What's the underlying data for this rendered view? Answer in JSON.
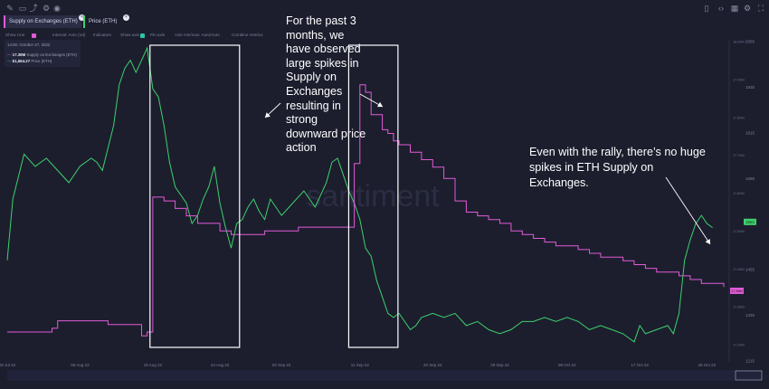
{
  "toolbar_top": {
    "icons": [
      "pencil-icon",
      "rectangle-icon",
      "share-icon",
      "settings-icon",
      "camera-icon"
    ],
    "right_icons": [
      "sidebar-icon",
      "code-icon",
      "layout-icon",
      "gear-icon",
      "fullscreen-icon"
    ]
  },
  "tabs": [
    {
      "label": "Supply on Exchanges (ETH)",
      "color": "#e15bd6"
    },
    {
      "label": "Price (ETH)",
      "color": "#3dd16b"
    }
  ],
  "chart_options": {
    "items": [
      "Show Line",
      "Interval: Auto (1d)",
      "Indicators",
      "Show axis",
      "Pin axis",
      "Axis min/max: Auto/Auto",
      "Combine metrics"
    ]
  },
  "tooltip": {
    "date": "14:00, October 27, 2022",
    "items": [
      {
        "value": "17.38M",
        "label": "Supply on Exchanges (ETH)",
        "color": "#e15bd6"
      },
      {
        "value": "$1,564.27",
        "label": "Price (ETH)",
        "color": "#3dd16b"
      }
    ]
  },
  "annotation_left": "For the past 3 months, we have observed large spikes in Supply on Exchanges resulting in strong downward price action",
  "annotation_right": "Even with the rally, there’s no huge spikes in ETH Supply on Exchanges.",
  "watermark": "santiment",
  "chart_data": {
    "type": "line",
    "x_ticks": [
      "28 Jul 22",
      "06 Aug 22",
      "15 Aug 22",
      "24 Aug 22",
      "02 Sep 22",
      "11 Sep 22",
      "20 Sep 22",
      "29 Sep 22",
      "08 Oct 22",
      "17 Oct 22",
      "26 Oct 22"
    ],
    "x_index": [
      0,
      13,
      26,
      38,
      49,
      63,
      76,
      88,
      100,
      113,
      125
    ],
    "series": [
      {
        "name": "Supply on Exchanges (ETH)",
        "color": "#e15bd6",
        "axis": "left-inner",
        "values": [
          [
            0,
            17.27
          ],
          [
            8,
            17.28
          ],
          [
            9,
            17.3
          ],
          [
            17,
            17.3
          ],
          [
            18,
            17.29
          ],
          [
            24,
            17.26
          ],
          [
            25,
            17.27
          ],
          [
            26,
            17.63
          ],
          [
            27,
            17.63
          ],
          [
            28,
            17.62
          ],
          [
            30,
            17.6
          ],
          [
            32,
            17.58
          ],
          [
            34,
            17.56
          ],
          [
            36,
            17.56
          ],
          [
            38,
            17.54
          ],
          [
            40,
            17.53
          ],
          [
            42,
            17.53
          ],
          [
            44,
            17.53
          ],
          [
            46,
            17.54
          ],
          [
            48,
            17.54
          ],
          [
            50,
            17.54
          ],
          [
            52,
            17.55
          ],
          [
            54,
            17.55
          ],
          [
            56,
            17.55
          ],
          [
            58,
            17.55
          ],
          [
            60,
            17.55
          ],
          [
            62,
            17.72
          ],
          [
            63,
            17.93
          ],
          [
            64,
            17.91
          ],
          [
            65,
            17.85
          ],
          [
            67,
            17.81
          ],
          [
            68,
            17.8
          ],
          [
            69,
            17.78
          ],
          [
            70,
            17.77
          ],
          [
            72,
            17.75
          ],
          [
            74,
            17.73
          ],
          [
            76,
            17.71
          ],
          [
            78,
            17.68
          ],
          [
            80,
            17.62
          ],
          [
            82,
            17.59
          ],
          [
            84,
            17.58
          ],
          [
            86,
            17.57
          ],
          [
            88,
            17.56
          ],
          [
            90,
            17.54
          ],
          [
            92,
            17.53
          ],
          [
            94,
            17.52
          ],
          [
            96,
            17.51
          ],
          [
            98,
            17.5
          ],
          [
            100,
            17.5
          ],
          [
            102,
            17.49
          ],
          [
            104,
            17.48
          ],
          [
            106,
            17.47
          ],
          [
            108,
            17.47
          ],
          [
            110,
            17.46
          ],
          [
            112,
            17.45
          ],
          [
            114,
            17.44
          ],
          [
            116,
            17.43
          ],
          [
            118,
            17.43
          ],
          [
            120,
            17.42
          ],
          [
            122,
            17.41
          ],
          [
            124,
            17.4
          ],
          [
            126,
            17.4
          ],
          [
            128,
            17.39
          ]
        ]
      },
      {
        "name": "Price (ETH)",
        "color": "#3dd16b",
        "axis": "right",
        "values": [
          [
            0,
            1470
          ],
          [
            1,
            1620
          ],
          [
            3,
            1730
          ],
          [
            5,
            1700
          ],
          [
            7,
            1720
          ],
          [
            9,
            1690
          ],
          [
            11,
            1660
          ],
          [
            13,
            1700
          ],
          [
            15,
            1720
          ],
          [
            16,
            1710
          ],
          [
            17,
            1690
          ],
          [
            19,
            1800
          ],
          [
            20,
            1900
          ],
          [
            21,
            1940
          ],
          [
            22,
            1960
          ],
          [
            23,
            1930
          ],
          [
            24,
            1960
          ],
          [
            25,
            1990
          ],
          [
            26,
            1890
          ],
          [
            27,
            1870
          ],
          [
            28,
            1800
          ],
          [
            29,
            1710
          ],
          [
            30,
            1650
          ],
          [
            32,
            1610
          ],
          [
            33,
            1560
          ],
          [
            34,
            1580
          ],
          [
            35,
            1620
          ],
          [
            36,
            1650
          ],
          [
            37,
            1700
          ],
          [
            38,
            1610
          ],
          [
            39,
            1550
          ],
          [
            40,
            1500
          ],
          [
            41,
            1560
          ],
          [
            42,
            1570
          ],
          [
            43,
            1600
          ],
          [
            44,
            1620
          ],
          [
            45,
            1590
          ],
          [
            46,
            1570
          ],
          [
            47,
            1620
          ],
          [
            49,
            1580
          ],
          [
            51,
            1610
          ],
          [
            53,
            1640
          ],
          [
            55,
            1600
          ],
          [
            57,
            1660
          ],
          [
            58,
            1710
          ],
          [
            59,
            1720
          ],
          [
            60,
            1680
          ],
          [
            61,
            1640
          ],
          [
            62,
            1610
          ],
          [
            63,
            1570
          ],
          [
            64,
            1500
          ],
          [
            65,
            1480
          ],
          [
            66,
            1420
          ],
          [
            67,
            1380
          ],
          [
            68,
            1340
          ],
          [
            69,
            1330
          ],
          [
            70,
            1340
          ],
          [
            71,
            1320
          ],
          [
            72,
            1300
          ],
          [
            73,
            1310
          ],
          [
            74,
            1330
          ],
          [
            76,
            1340
          ],
          [
            78,
            1330
          ],
          [
            80,
            1340
          ],
          [
            82,
            1310
          ],
          [
            84,
            1320
          ],
          [
            86,
            1300
          ],
          [
            88,
            1290
          ],
          [
            90,
            1300
          ],
          [
            92,
            1320
          ],
          [
            94,
            1320
          ],
          [
            96,
            1330
          ],
          [
            98,
            1320
          ],
          [
            100,
            1330
          ],
          [
            102,
            1320
          ],
          [
            104,
            1300
          ],
          [
            106,
            1310
          ],
          [
            108,
            1300
          ],
          [
            110,
            1290
          ],
          [
            112,
            1270
          ],
          [
            113,
            1310
          ],
          [
            114,
            1290
          ],
          [
            116,
            1300
          ],
          [
            118,
            1310
          ],
          [
            119,
            1290
          ],
          [
            120,
            1340
          ],
          [
            121,
            1470
          ],
          [
            122,
            1520
          ],
          [
            123,
            1560
          ],
          [
            124,
            1580
          ],
          [
            125,
            1560
          ],
          [
            126,
            1550
          ]
        ]
      }
    ],
    "left_axis": {
      "min": 17.2,
      "max": 18.05
    },
    "right_axis": {
      "min": 1230,
      "max": 2010
    },
    "right_ticks": [
      "2055",
      "1935",
      "1815",
      "1695",
      "1575",
      "1455",
      "1335",
      "1215"
    ],
    "left_inner_ticks": [
      "18.00M",
      "17.90M",
      "17.80M",
      "17.70M",
      "17.60M",
      "17.50M",
      "17.40M",
      "17.30M",
      "17.20M"
    ],
    "last_labels": {
      "price": "1564",
      "supply": "17.38M"
    },
    "highlight_boxes": [
      {
        "x_start": 25.5,
        "x_end": 41.5
      },
      {
        "x_start": 61.0,
        "x_end": 69.8
      }
    ]
  }
}
